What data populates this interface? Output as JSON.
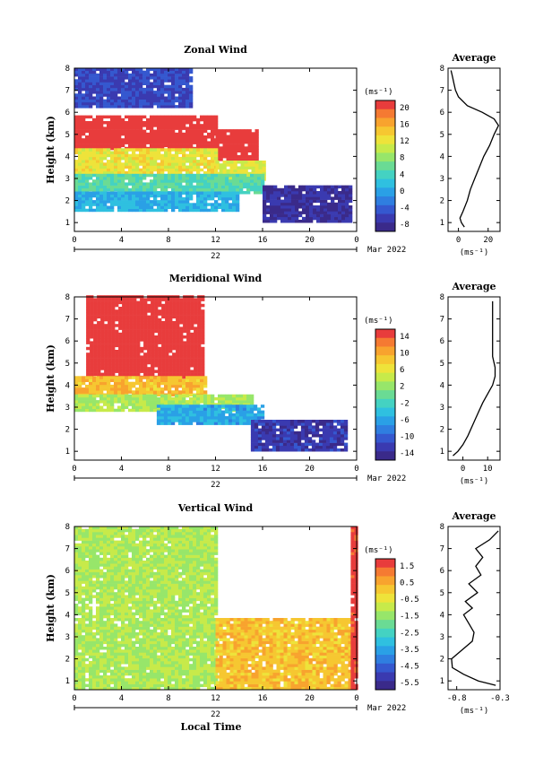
{
  "x_ticks": [
    "0",
    "4",
    "8",
    "12",
    "16",
    "20",
    "0"
  ],
  "y_ticks": [
    "1",
    "2",
    "3",
    "4",
    "5",
    "6",
    "7",
    "8"
  ],
  "date_label": "22",
  "month_label": "Mar 2022",
  "ylabel": "Height (km)",
  "xlabel": "Local Time",
  "unit": "(ms⁻¹)",
  "avg_title": "Average",
  "panels": [
    {
      "title": "Zonal Wind",
      "cbar_ticks": [
        "20",
        "16",
        "12",
        "8",
        "4",
        "0",
        "-4",
        "-8"
      ],
      "cbar_colors": [
        "#e83c3c",
        "#f57a32",
        "#f8a32e",
        "#f6c731",
        "#eee33a",
        "#c7ea4a",
        "#97e66a",
        "#6adb94",
        "#44d2c2",
        "#2fc0e0",
        "#2aa0e6",
        "#2f7ee0",
        "#3558cf",
        "#3a3ab0",
        "#3a2a8a"
      ],
      "avg_ticks": [
        "0",
        "20"
      ]
    },
    {
      "title": "Meridional Wind",
      "cbar_ticks": [
        "14",
        "10",
        "6",
        "2",
        "-2",
        "-6",
        "-10",
        "-14"
      ],
      "cbar_colors": [
        "#e83c3c",
        "#f57a32",
        "#f8a32e",
        "#f6c731",
        "#eee33a",
        "#c7ea4a",
        "#97e66a",
        "#6adb94",
        "#44d2c2",
        "#2fc0e0",
        "#2aa0e6",
        "#2f7ee0",
        "#3558cf",
        "#3a3ab0",
        "#3a2a8a"
      ],
      "avg_ticks": [
        "0",
        "10"
      ]
    },
    {
      "title": "Vertical Wind",
      "cbar_ticks": [
        "1.5",
        "0.5",
        "-0.5",
        "-1.5",
        "-2.5",
        "-3.5",
        "-4.5",
        "-5.5"
      ],
      "cbar_colors": [
        "#e83c3c",
        "#f57a32",
        "#f8a32e",
        "#f6c731",
        "#eee33a",
        "#c7ea4a",
        "#97e66a",
        "#6adb94",
        "#44d2c2",
        "#2fc0e0",
        "#2aa0e6",
        "#2f7ee0",
        "#3558cf",
        "#3a3ab0",
        "#3a2a8a"
      ],
      "avg_ticks": [
        "-0.8",
        "-0.3"
      ]
    }
  ],
  "chart_data": [
    {
      "type": "heatmap",
      "title": "Zonal Wind",
      "xlabel": "",
      "ylabel": "Height (km)",
      "xlim": [
        0,
        24
      ],
      "ylim": [
        0.6,
        8
      ],
      "color_range": [
        -8,
        22
      ],
      "colorbar_unit": "(ms⁻¹)",
      "description_regions": [
        {
          "t_range": [
            0,
            12
          ],
          "h_range": [
            4.3,
            5.8
          ],
          "value": 22
        },
        {
          "t_range": [
            12,
            15.5
          ],
          "h_range": [
            3.8,
            5.2
          ],
          "value": 22
        },
        {
          "t_range": [
            0,
            12
          ],
          "h_range": [
            3.2,
            4.3
          ],
          "value": 13
        },
        {
          "t_range": [
            12,
            16
          ],
          "h_range": [
            2.9,
            3.8
          ],
          "value": 12
        },
        {
          "t_range": [
            0,
            16
          ],
          "h_range": [
            2.3,
            3.2
          ],
          "value": 6
        },
        {
          "t_range": [
            0,
            14
          ],
          "h_range": [
            1.5,
            2.3
          ],
          "value": 2
        },
        {
          "t_range": [
            16,
            23.5
          ],
          "h_range": [
            1.0,
            2.6
          ],
          "value": -6
        },
        {
          "t_range": [
            0,
            10
          ],
          "h_range": [
            6.2,
            8
          ],
          "value": -4
        }
      ],
      "average_profile": {
        "title": "Average",
        "xlabel": "(ms⁻¹)",
        "xlim": [
          -7,
          28
        ],
        "height": [
          0.8,
          1.0,
          1.2,
          1.5,
          2.0,
          2.5,
          3.0,
          3.5,
          4.0,
          4.5,
          5.0,
          5.4,
          5.7,
          6.0,
          6.3,
          6.7,
          7.0,
          7.3,
          7.6,
          7.9
        ],
        "values": [
          4,
          2,
          1,
          3,
          6,
          8,
          11,
          14,
          17,
          21,
          24,
          27,
          24,
          16,
          6,
          0,
          -2,
          -3,
          -4,
          -5
        ]
      }
    },
    {
      "type": "heatmap",
      "title": "Meridional Wind",
      "xlabel": "",
      "ylabel": "Height (km)",
      "xlim": [
        0,
        24
      ],
      "ylim": [
        0.6,
        8
      ],
      "color_range": [
        -16,
        16
      ],
      "colorbar_unit": "(ms⁻¹)",
      "description_regions": [
        {
          "t_range": [
            1,
            11
          ],
          "h_range": [
            4.3,
            8
          ],
          "value": 16
        },
        {
          "t_range": [
            0,
            11
          ],
          "h_range": [
            3.5,
            4.3
          ],
          "value": 9
        },
        {
          "t_range": [
            0,
            15
          ],
          "h_range": [
            2.8,
            3.5
          ],
          "value": 3
        },
        {
          "t_range": [
            7,
            16
          ],
          "h_range": [
            2.2,
            3.0
          ],
          "value": -6
        },
        {
          "t_range": [
            15,
            23
          ],
          "h_range": [
            1.0,
            2.4
          ],
          "value": -13
        }
      ],
      "average_profile": {
        "title": "Average",
        "xlabel": "(ms⁻¹)",
        "xlim": [
          -6,
          15
        ],
        "height": [
          0.8,
          1.0,
          1.3,
          1.7,
          2.2,
          2.7,
          3.2,
          3.6,
          4.0,
          4.4,
          4.8,
          5.3,
          5.8,
          6.3,
          6.8,
          7.3,
          7.8
        ],
        "values": [
          -4,
          -2,
          0,
          2,
          4,
          6,
          8,
          10,
          12,
          13,
          13,
          12,
          12,
          12,
          12,
          12,
          12
        ]
      }
    },
    {
      "type": "heatmap",
      "title": "Vertical Wind",
      "xlabel": "Local Time",
      "ylabel": "Height (km)",
      "xlim": [
        0,
        24
      ],
      "ylim": [
        0.6,
        8
      ],
      "color_range": [
        -6,
        2
      ],
      "colorbar_unit": "(ms⁻¹)",
      "description_regions": [
        {
          "t_range": [
            0,
            12
          ],
          "h_range": [
            0.6,
            8
          ],
          "value": -1.2
        },
        {
          "t_range": [
            12,
            23.5
          ],
          "h_range": [
            0.6,
            3.8
          ],
          "value": 0.2
        },
        {
          "t_range": [
            23.5,
            24
          ],
          "h_range": [
            0.6,
            8
          ],
          "value": 1.8
        }
      ],
      "average_profile": {
        "title": "Average",
        "xlabel": "(ms⁻¹)",
        "xlim": [
          -0.9,
          -0.3
        ],
        "height": [
          0.8,
          1.0,
          1.3,
          1.6,
          2.0,
          2.4,
          2.8,
          3.2,
          3.6,
          4.0,
          4.3,
          4.6,
          5.0,
          5.4,
          5.8,
          6.2,
          6.6,
          7.0,
          7.4,
          7.8
        ],
        "values": [
          -0.35,
          -0.55,
          -0.72,
          -0.85,
          -0.86,
          -0.74,
          -0.62,
          -0.6,
          -0.66,
          -0.72,
          -0.62,
          -0.7,
          -0.56,
          -0.66,
          -0.52,
          -0.58,
          -0.5,
          -0.58,
          -0.42,
          -0.32
        ]
      }
    }
  ]
}
